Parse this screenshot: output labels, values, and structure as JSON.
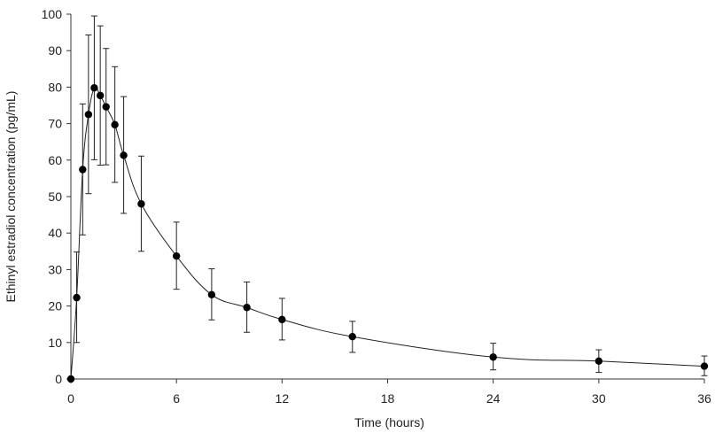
{
  "chart_data": {
    "type": "line",
    "title": "",
    "xlabel": "Time (hours)",
    "ylabel": "Ethinyl estradiol concentration (pg/mL)",
    "xlim": [
      0,
      36
    ],
    "ylim": [
      0,
      100
    ],
    "x_ticks": [
      "0",
      "6",
      "12",
      "18",
      "24",
      "30",
      "36"
    ],
    "y_ticks": [
      "0",
      "10",
      "20",
      "30",
      "40",
      "50",
      "60",
      "70",
      "80",
      "90",
      "100"
    ],
    "grid": false,
    "legend": "none",
    "colors": {
      "series": "#000000",
      "axes": "#333333",
      "text": "#222222"
    },
    "series": [
      {
        "x": [
          0,
          0.33,
          0.67,
          1.0,
          1.33,
          1.67,
          2.0,
          2.5,
          3.0,
          4.0,
          6.0,
          8.0,
          10.0,
          12.0,
          16.0,
          24.0,
          30.0,
          36.0
        ],
        "y": [
          0,
          22.3,
          57.4,
          72.5,
          79.8,
          77.7,
          74.6,
          69.7,
          61.3,
          48.0,
          33.7,
          23.1,
          19.6,
          16.3,
          11.6,
          6.0,
          4.9,
          3.5
        ],
        "upper": [
          0,
          34.8,
          75.4,
          94.3,
          99.5,
          96.8,
          90.6,
          85.6,
          77.4,
          61.1,
          43.0,
          30.2,
          26.6,
          22.1,
          15.8,
          9.8,
          8.0,
          6.3
        ],
        "lower": [
          0,
          10.0,
          39.5,
          50.8,
          60.1,
          58.6,
          58.7,
          53.9,
          45.4,
          35.0,
          24.6,
          16.2,
          12.8,
          10.7,
          7.3,
          2.5,
          1.8,
          0.9
        ]
      }
    ]
  }
}
